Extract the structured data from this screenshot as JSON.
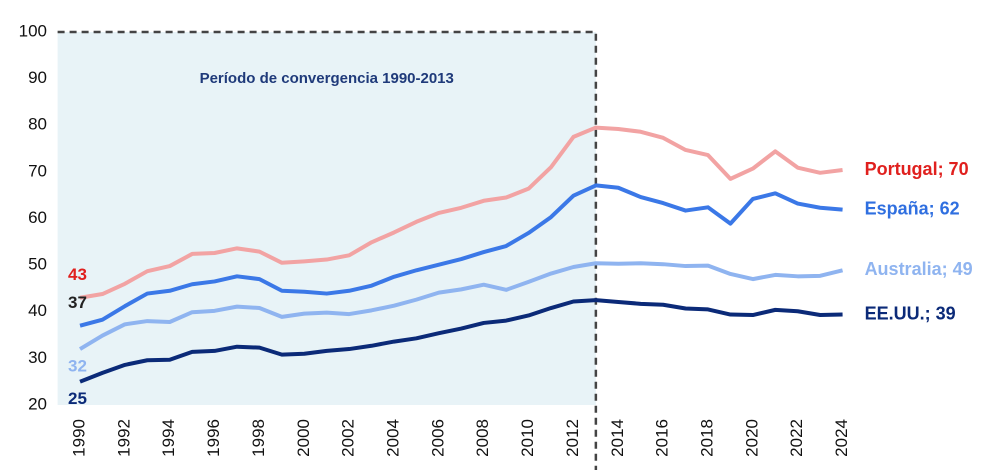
{
  "chart_data": {
    "type": "line",
    "annotation": "Período de convergencia 1990-2013",
    "shade_end": 2013,
    "x": [
      1990,
      1991,
      1992,
      1993,
      1994,
      1995,
      1996,
      1997,
      1998,
      1999,
      2000,
      2001,
      2002,
      2003,
      2004,
      2005,
      2006,
      2007,
      2008,
      2009,
      2010,
      2011,
      2012,
      2013,
      2014,
      2015,
      2016,
      2017,
      2018,
      2019,
      2020,
      2021,
      2022,
      2023,
      2024
    ],
    "xlim": [
      1989,
      2025
    ],
    "xticks": [
      1990,
      1992,
      1994,
      1996,
      1998,
      2000,
      2002,
      2004,
      2006,
      2008,
      2010,
      2012,
      2014,
      2016,
      2018,
      2020,
      2022,
      2024
    ],
    "ylim": [
      20,
      100
    ],
    "yticks": [
      20,
      30,
      40,
      50,
      60,
      70,
      80,
      90,
      100
    ],
    "grid": false,
    "series": [
      {
        "label": "Portugal; 70",
        "start_label": "43",
        "color": "#f2a3a3",
        "label_color": "#e0201e",
        "start_label_color": "#e0201e",
        "values": [
          43,
          43.8,
          46,
          48.7,
          49.8,
          52.4,
          52.6,
          53.6,
          52.9,
          50.5,
          50.8,
          51.2,
          52.1,
          54.9,
          57,
          59.3,
          61.2,
          62.3,
          63.8,
          64.5,
          66.4,
          71,
          77.5,
          79.5,
          79.2,
          78.6,
          77.3,
          74.7,
          73.6,
          68.5,
          70.7,
          74.4,
          70.9,
          69.8,
          70.4
        ]
      },
      {
        "label": "España; 62",
        "start_label": "37",
        "color": "#3b78e7",
        "label_color": "#2f6fe0",
        "start_label_color": "#222222",
        "values": [
          37,
          38.3,
          41.2,
          43.9,
          44.5,
          45.9,
          46.5,
          47.6,
          47,
          44.5,
          44.3,
          43.9,
          44.5,
          45.6,
          47.5,
          48.9,
          50.1,
          51.3,
          52.8,
          54.1,
          56.9,
          60.3,
          64.9,
          67.1,
          66.6,
          64.6,
          63.3,
          61.7,
          62.4,
          58.9,
          64.2,
          65.4,
          63.2,
          62.3,
          61.9
        ]
      },
      {
        "label": "Australia; 49",
        "start_label": "32",
        "color": "#8fb4f0",
        "label_color": "#8fb4f0",
        "start_label_color": "#8fb4f0",
        "values": [
          32,
          34.9,
          37.3,
          38,
          37.8,
          39.9,
          40.2,
          41.1,
          40.8,
          38.9,
          39.6,
          39.8,
          39.5,
          40.3,
          41.3,
          42.6,
          44.1,
          44.8,
          45.8,
          44.7,
          46.4,
          48.2,
          49.6,
          50.4,
          50.3,
          50.4,
          50.2,
          49.8,
          49.9,
          48.1,
          47,
          47.9,
          47.6,
          47.7,
          48.9
        ]
      },
      {
        "label": "EE.UU.; 39",
        "start_label": "25",
        "color": "#0b2a78",
        "label_color": "#0b2a78",
        "start_label_color": "#0b2a78",
        "values": [
          25,
          26.9,
          28.6,
          29.6,
          29.7,
          31.4,
          31.6,
          32.5,
          32.3,
          30.8,
          31,
          31.6,
          32,
          32.7,
          33.6,
          34.3,
          35.4,
          36.4,
          37.6,
          38.1,
          39.2,
          40.8,
          42.2,
          42.5,
          42.1,
          41.7,
          41.5,
          40.7,
          40.5,
          39.4,
          39.3,
          40.4,
          40.1,
          39.3,
          39.4
        ]
      }
    ]
  }
}
